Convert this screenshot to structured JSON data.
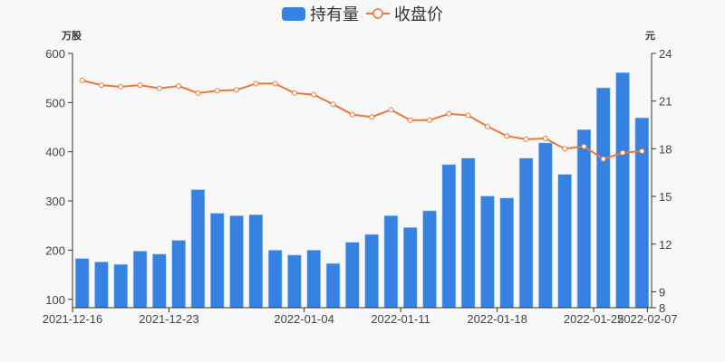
{
  "legend": {
    "bar_label": "持有量",
    "line_label": "收盘价"
  },
  "axes": {
    "left_unit": "万股",
    "right_unit": "元"
  },
  "colors": {
    "bar": "#3582e2",
    "line": "#e8793a"
  },
  "chart_data": {
    "type": "bar+line",
    "title": "",
    "legend": [
      "持有量",
      "收盘价"
    ],
    "legend_position": "top",
    "x": [
      "2021-12-16",
      "2021-12-17",
      "2021-12-20",
      "2021-12-21",
      "2021-12-22",
      "2021-12-23",
      "2021-12-24",
      "2021-12-27",
      "2021-12-28",
      "2021-12-29",
      "2021-12-30",
      "2021-12-31",
      "2022-01-04",
      "2022-01-05",
      "2022-01-06",
      "2022-01-07",
      "2022-01-10",
      "2022-01-11",
      "2022-01-12",
      "2022-01-13",
      "2022-01-14",
      "2022-01-17",
      "2022-01-18",
      "2022-01-19",
      "2022-01-20",
      "2022-01-21",
      "2022-01-24",
      "2022-01-25",
      "2022-01-26",
      "2022-02-07"
    ],
    "x_tick_labels": [
      "2021-12-16",
      "2021-12-23",
      "2022-01-04",
      "2022-01-11",
      "2022-01-18",
      "2022-01-25",
      "2022-02-07"
    ],
    "series": [
      {
        "name": "持有量",
        "type": "bar",
        "axis": "left",
        "values": [
          183,
          176,
          171,
          198,
          192,
          220,
          323,
          275,
          270,
          272,
          200,
          190,
          200,
          173,
          216,
          232,
          270,
          246,
          280,
          374,
          387,
          310,
          306,
          387,
          418,
          354,
          445,
          530,
          561,
          469
        ]
      },
      {
        "name": "收盘价",
        "type": "line",
        "axis": "right",
        "values": [
          22.3,
          22.0,
          21.9,
          22.0,
          21.8,
          21.95,
          21.5,
          21.65,
          21.7,
          22.1,
          22.1,
          21.5,
          21.4,
          20.8,
          20.15,
          20.0,
          20.45,
          19.8,
          19.8,
          20.2,
          20.1,
          19.4,
          18.8,
          18.6,
          18.65,
          18.0,
          18.15,
          17.35,
          17.75,
          17.85
        ]
      }
    ],
    "ylabel_left": "万股",
    "ylabel_right": "元",
    "ylim_left": [
      83,
      600
    ],
    "yticks_left": [
      100,
      200,
      300,
      400,
      500,
      600
    ],
    "ylim_right": [
      8,
      24
    ],
    "yticks_right": [
      8,
      9,
      12,
      15,
      18,
      21,
      24
    ],
    "grid": false
  }
}
